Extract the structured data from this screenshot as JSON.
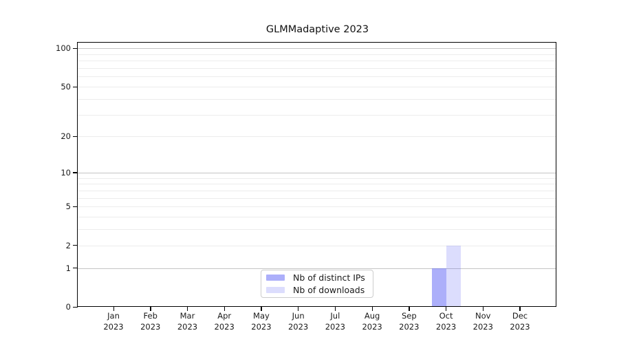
{
  "title": "GLMMadaptive 2023",
  "chart_data": {
    "type": "bar",
    "title": "GLMMadaptive 2023",
    "categories": [
      "Jan 2023",
      "Feb 2023",
      "Mar 2023",
      "Apr 2023",
      "May 2023",
      "Jun 2023",
      "Jul 2023",
      "Aug 2023",
      "Sep 2023",
      "Oct 2023",
      "Nov 2023",
      "Dec 2023"
    ],
    "series": [
      {
        "name": "Nb of distinct IPs",
        "color": "rgba(90,96,245,0.50)",
        "values": [
          0,
          0,
          0,
          0,
          0,
          0,
          0,
          0,
          0,
          1,
          0,
          0
        ]
      },
      {
        "name": "Nb of downloads",
        "color": "rgba(90,96,245,0.21)",
        "values": [
          0,
          0,
          0,
          0,
          0,
          0,
          0,
          0,
          0,
          2,
          0,
          0
        ]
      }
    ],
    "xlabel": "",
    "ylabel": "",
    "y_scale": "log1p",
    "ylim": [
      0,
      111
    ],
    "y_ticks": [
      0,
      1,
      2,
      5,
      10,
      20,
      50,
      100
    ],
    "y_decade_gridlines": [
      1,
      10,
      100
    ],
    "y_minor_gridlines": [
      3,
      4,
      6,
      7,
      8,
      9,
      30,
      40,
      60,
      70,
      80,
      90
    ],
    "grid": "horizontal",
    "legend_position": "bottom-center"
  },
  "colors": {
    "bar_base": "#5a60f5",
    "grid_major": "#c4c4c4",
    "grid_minor": "#ececec",
    "spine": "#000000",
    "text": "#1a1a1a",
    "legend_border": "#cccccc"
  }
}
